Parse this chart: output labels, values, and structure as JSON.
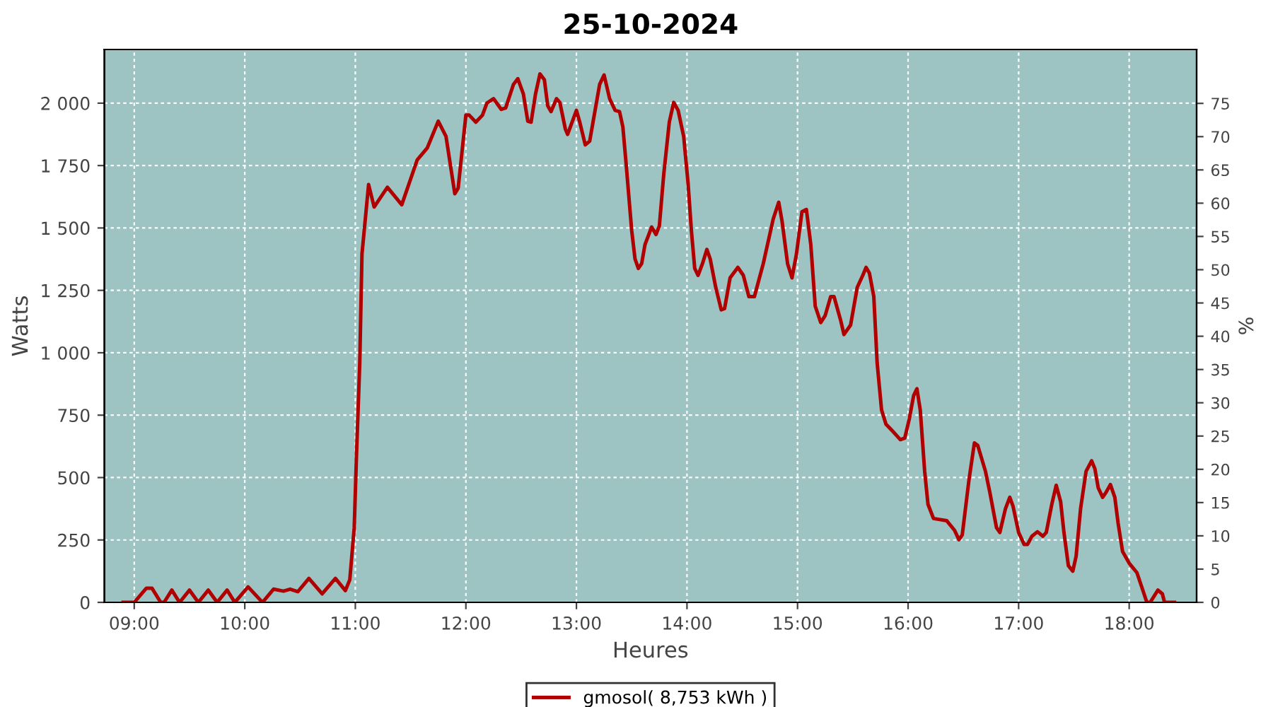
{
  "chart_data": {
    "type": "line",
    "title": "25-10-2024",
    "xlabel": "Heures",
    "ylabel": "Watts",
    "y2label": "%",
    "xlim": [
      8.73,
      18.61
    ],
    "xticks": [
      {
        "value": 9,
        "label": "09:00"
      },
      {
        "value": 10,
        "label": "10:00"
      },
      {
        "value": 11,
        "label": "11:00"
      },
      {
        "value": 12,
        "label": "12:00"
      },
      {
        "value": 13,
        "label": "13:00"
      },
      {
        "value": 14,
        "label": "14:00"
      },
      {
        "value": 15,
        "label": "15:00"
      },
      {
        "value": 16,
        "label": "16:00"
      },
      {
        "value": 17,
        "label": "17:00"
      },
      {
        "value": 18,
        "label": "18:00"
      }
    ],
    "ylim": [
      0,
      2215
    ],
    "yticks": [
      0,
      250,
      500,
      750,
      {
        "value": 1000,
        "label": "1 000"
      },
      {
        "value": 1250,
        "label": "1 250"
      },
      {
        "value": 1500,
        "label": "1 500"
      },
      {
        "value": 1750,
        "label": "1 750"
      },
      {
        "value": 2000,
        "label": "2 000"
      }
    ],
    "y2lim": [
      0,
      83.1
    ],
    "y2ticks": [
      0,
      5,
      10,
      15,
      20,
      25,
      30,
      35,
      40,
      45,
      50,
      55,
      60,
      65,
      70,
      75
    ],
    "grid": true,
    "legend": "bottom",
    "marker": "none",
    "line_style": "solid",
    "series": [
      {
        "name": "gmosol( 8,753 kWh )",
        "color": "#b00000",
        "x": [
          8.9,
          9.0,
          9.11,
          9.16,
          9.24,
          9.27,
          9.34,
          9.41,
          9.5,
          9.58,
          9.67,
          9.75,
          9.84,
          9.91,
          10.03,
          10.16,
          10.26,
          10.35,
          10.41,
          10.48,
          10.58,
          10.7,
          10.82,
          10.91,
          10.95,
          10.99,
          11.01,
          11.04,
          11.06,
          11.12,
          11.17,
          11.29,
          11.42,
          11.56,
          11.65,
          11.75,
          11.82,
          11.9,
          11.93,
          12.0,
          12.03,
          12.09,
          12.15,
          12.19,
          12.25,
          12.32,
          12.36,
          12.43,
          12.47,
          12.52,
          12.56,
          12.59,
          12.63,
          12.67,
          12.71,
          12.74,
          12.77,
          12.82,
          12.85,
          12.9,
          12.92,
          13.0,
          13.03,
          13.08,
          13.12,
          13.15,
          13.21,
          13.25,
          13.3,
          13.35,
          13.39,
          13.42,
          13.45,
          13.5,
          13.53,
          13.56,
          13.59,
          13.62,
          13.68,
          13.72,
          13.75,
          13.79,
          13.84,
          13.88,
          13.92,
          13.97,
          14.01,
          14.04,
          14.07,
          14.1,
          14.14,
          14.18,
          14.21,
          14.26,
          14.31,
          14.34,
          14.39,
          14.46,
          14.51,
          14.56,
          14.61,
          14.69,
          14.78,
          14.83,
          14.86,
          14.91,
          14.95,
          14.99,
          15.04,
          15.08,
          15.12,
          15.16,
          15.21,
          15.25,
          15.3,
          15.33,
          15.39,
          15.42,
          15.48,
          15.54,
          15.59,
          15.62,
          15.65,
          15.69,
          15.72,
          15.76,
          15.8,
          15.86,
          15.93,
          15.97,
          16.01,
          16.05,
          16.08,
          16.11,
          16.15,
          16.18,
          16.23,
          16.35,
          16.42,
          16.46,
          16.49,
          16.55,
          16.6,
          16.63,
          16.7,
          16.74,
          16.8,
          16.83,
          16.88,
          16.92,
          16.95,
          17.0,
          17.05,
          17.08,
          17.12,
          17.17,
          17.22,
          17.25,
          17.3,
          17.34,
          17.38,
          17.41,
          17.45,
          17.49,
          17.52,
          17.56,
          17.61,
          17.66,
          17.69,
          17.72,
          17.76,
          17.79,
          17.83,
          17.87,
          17.9,
          17.94,
          18.0,
          18.07,
          18.12,
          18.16,
          18.19,
          18.26,
          18.3,
          18.32,
          18.41
        ],
        "values": [
          0,
          0,
          57,
          57,
          0,
          0,
          49,
          0,
          49,
          0,
          49,
          0,
          49,
          0,
          62,
          0,
          53,
          45,
          53,
          43,
          96,
          34,
          96,
          47,
          91,
          299,
          582,
          960,
          1395,
          1674,
          1584,
          1663,
          1593,
          1773,
          1820,
          1928,
          1867,
          1637,
          1659,
          1952,
          1952,
          1924,
          1952,
          2000,
          2018,
          1975,
          1981,
          2075,
          2098,
          2037,
          1928,
          1924,
          2037,
          2117,
          2094,
          1990,
          1966,
          2018,
          2003,
          1896,
          1875,
          1971,
          1924,
          1833,
          1848,
          1924,
          2075,
          2113,
          2018,
          1971,
          1966,
          1905,
          1754,
          1489,
          1376,
          1338,
          1357,
          1433,
          1504,
          1474,
          1508,
          1716,
          1924,
          2003,
          1971,
          1867,
          1678,
          1489,
          1338,
          1310,
          1357,
          1414,
          1376,
          1262,
          1172,
          1177,
          1300,
          1342,
          1310,
          1225,
          1225,
          1357,
          1536,
          1603,
          1527,
          1357,
          1300,
          1395,
          1565,
          1574,
          1433,
          1187,
          1121,
          1149,
          1225,
          1225,
          1130,
          1073,
          1111,
          1262,
          1310,
          1342,
          1319,
          1225,
          960,
          771,
          714,
          686,
          652,
          658,
          733,
          828,
          856,
          771,
          525,
          393,
          336,
          327,
          289,
          251,
          270,
          488,
          639,
          629,
          525,
          440,
          299,
          280,
          374,
          421,
          384,
          280,
          232,
          232,
          265,
          283,
          265,
          280,
          393,
          469,
          403,
          280,
          147,
          125,
          185,
          374,
          525,
          567,
          535,
          459,
          421,
          440,
          472,
          421,
          317,
          204,
          157,
          119,
          53,
          0,
          0,
          49,
          34,
          0,
          0
        ]
      }
    ]
  }
}
